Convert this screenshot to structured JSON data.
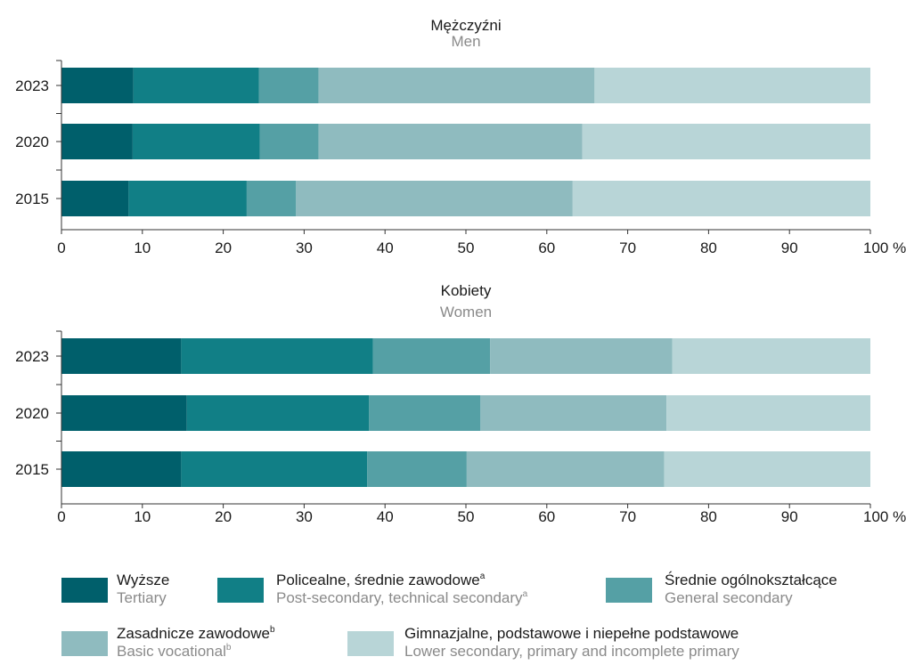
{
  "chart_data": [
    {
      "type": "bar",
      "orientation": "horizontal",
      "stacked": true,
      "title": "Mężczyźni",
      "subtitle": "Men",
      "categories": [
        "2023",
        "2020",
        "2015"
      ],
      "series": [
        {
          "name": "Wyższe",
          "values": [
            8.9,
            8.8,
            8.3
          ]
        },
        {
          "name": "Policealne, średnie zawodowe",
          "values": [
            15.5,
            15.7,
            14.6
          ]
        },
        {
          "name": "Średnie ogólnokształcące",
          "values": [
            7.4,
            7.3,
            6.1
          ]
        },
        {
          "name": "Zasadnicze zawodowe",
          "values": [
            34.1,
            32.6,
            34.2
          ]
        },
        {
          "name": "Gimnazjalne, podstawowe i niepełne podstawowe",
          "values": [
            34.1,
            35.6,
            36.8
          ]
        }
      ],
      "x_ticks": [
        "0",
        "10",
        "20",
        "30",
        "40",
        "50",
        "60",
        "70",
        "80",
        "90",
        "100 %"
      ],
      "xlim": [
        0,
        100
      ],
      "grid": false
    },
    {
      "type": "bar",
      "orientation": "horizontal",
      "stacked": true,
      "title": "Kobiety",
      "subtitle": "Women",
      "categories": [
        "2023",
        "2020",
        "2015"
      ],
      "series": [
        {
          "name": "Wyższe",
          "values": [
            14.8,
            15.5,
            14.8
          ]
        },
        {
          "name": "Policealne, średnie zawodowe",
          "values": [
            23.7,
            22.5,
            23.0
          ]
        },
        {
          "name": "Średnie ogólnokształcące",
          "values": [
            14.5,
            13.8,
            12.3
          ]
        },
        {
          "name": "Zasadnicze zawodowe",
          "values": [
            22.5,
            23.0,
            24.4
          ]
        },
        {
          "name": "Gimnazjalne, podstawowe i niepełne podstawowe",
          "values": [
            24.5,
            25.2,
            25.5
          ]
        }
      ],
      "x_ticks": [
        "0",
        "10",
        "20",
        "30",
        "40",
        "50",
        "60",
        "70",
        "80",
        "90",
        "100 %"
      ],
      "xlim": [
        0,
        100
      ],
      "grid": false
    }
  ],
  "colors": [
    "#005f6b",
    "#117f86",
    "#55a0a5",
    "#8fbbbf",
    "#b8d5d7"
  ],
  "legend": [
    {
      "pl": "Wyższe",
      "pl_sup": "",
      "en": "Tertiary",
      "en_sup": ""
    },
    {
      "pl": "Policealne,  średnie zawodowe",
      "pl_sup": "a",
      "en": "Post-secondary, technical secondary",
      "en_sup": "a"
    },
    {
      "pl": "Średnie ogólnokształcące",
      "pl_sup": "",
      "en": "General secondary",
      "en_sup": ""
    },
    {
      "pl": "Zasadnicze zawodowe",
      "pl_sup": "b",
      "en": "Basic vocational",
      "en_sup": "b"
    },
    {
      "pl": "Gimnazjalne, podstawowe i niepełne podstawowe",
      "pl_sup": "",
      "en": "Lower secondary, primary and incomplete primary",
      "en_sup": ""
    }
  ]
}
